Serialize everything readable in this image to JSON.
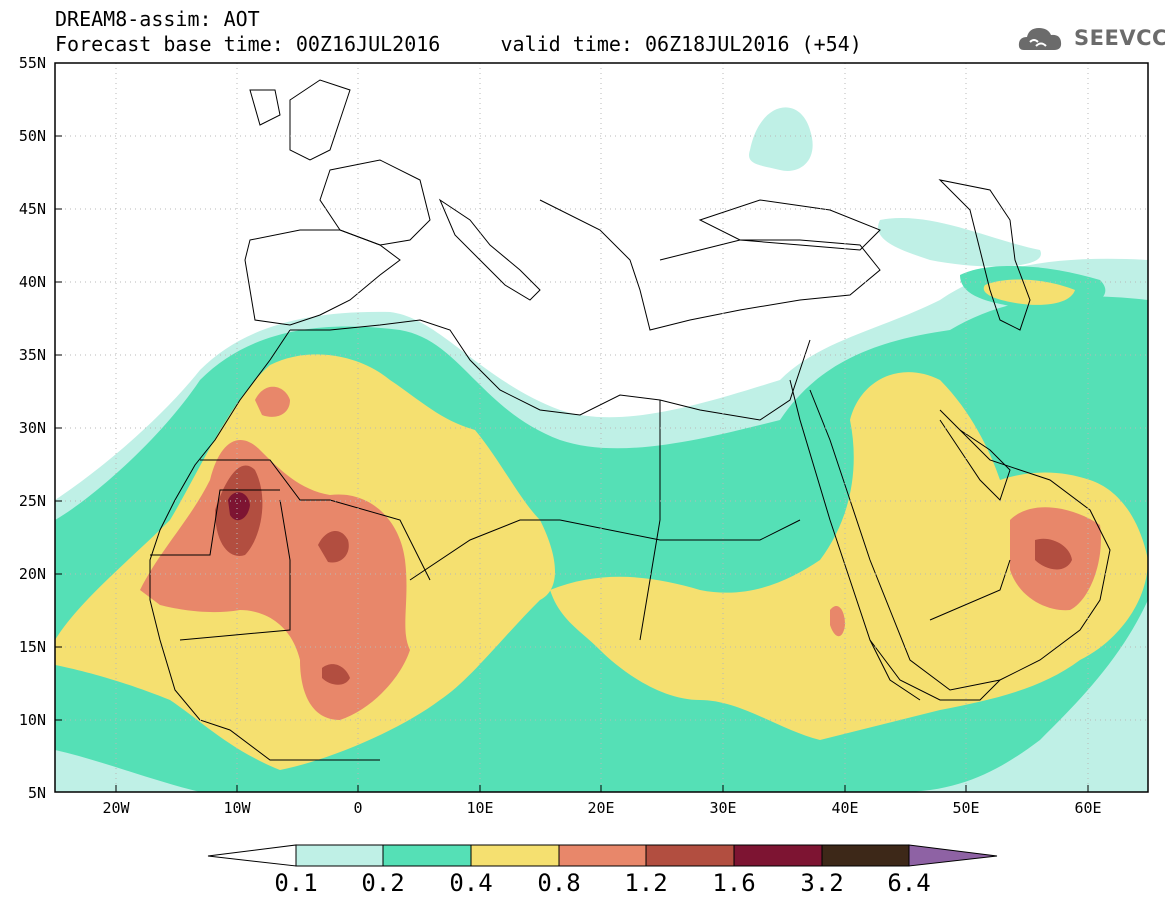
{
  "title": {
    "line1": "DREAM8-assim: AOT",
    "line2": "Forecast base time: 00Z16JUL2016     valid time: 06Z18JUL2016 (+54)"
  },
  "logo": {
    "text": "SEEVCCC",
    "icon": "cloud-icon"
  },
  "lat_labels": [
    "55N",
    "50N",
    "45N",
    "40N",
    "35N",
    "30N",
    "25N",
    "20N",
    "15N",
    "10N",
    "5N"
  ],
  "lon_labels": [
    "20W",
    "10W",
    "0",
    "10E",
    "20E",
    "30E",
    "40E",
    "50E",
    "60E"
  ],
  "colorbar": {
    "labels": [
      "0.1",
      "0.2",
      "0.4",
      "0.8",
      "1.2",
      "1.6",
      "3.2",
      "6.4"
    ],
    "colors": [
      "#ffffff",
      "#bff0e6",
      "#55e0b6",
      "#f5e070",
      "#e8876a",
      "#b24e40",
      "#7d1432",
      "#3d2818",
      "#8e62a4"
    ]
  }
}
